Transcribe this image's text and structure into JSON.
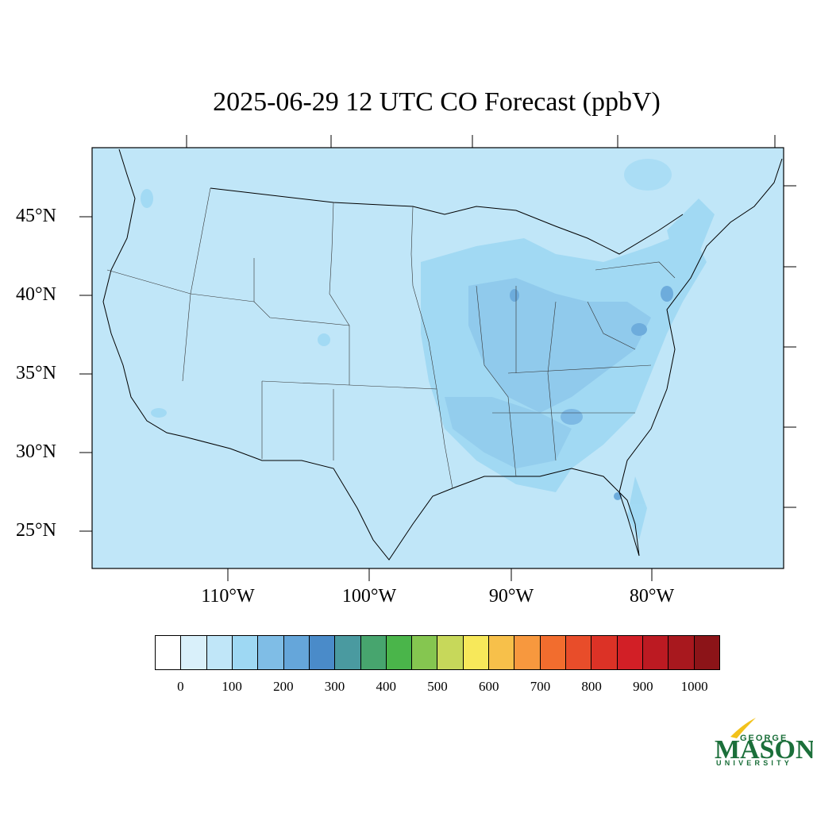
{
  "title": "2025-06-29 12 UTC CO Forecast (ppbV)",
  "map": {
    "background_color": "#c0e6f8",
    "lat_labels": [
      "45°N",
      "40°N",
      "35°N",
      "30°N",
      "25°N"
    ],
    "lon_labels": [
      "110°W",
      "100°W",
      "90°W",
      "80°W"
    ]
  },
  "colorbar": {
    "colors": [
      "#ffffff",
      "#d9f0fa",
      "#c0e6f8",
      "#9ed8f3",
      "#7fbde6",
      "#65a6da",
      "#4a8bc9",
      "#4a9aa0",
      "#47a56e",
      "#4ab54a",
      "#85c650",
      "#c7d85a",
      "#f7e85a",
      "#f7c04a",
      "#f7983e",
      "#f26d2e",
      "#e84d2a",
      "#dc3226",
      "#d21f26",
      "#bc1a22",
      "#a8181e",
      "#8c1418"
    ],
    "labels": [
      "0",
      "100",
      "200",
      "300",
      "400",
      "500",
      "600",
      "700",
      "800",
      "900",
      "1000"
    ]
  },
  "logo": {
    "line1": "GEORGE",
    "line2": "MASON",
    "line3": "UNIVERSITY",
    "color": "#1b6f3a",
    "accent": "#f2c21b"
  }
}
